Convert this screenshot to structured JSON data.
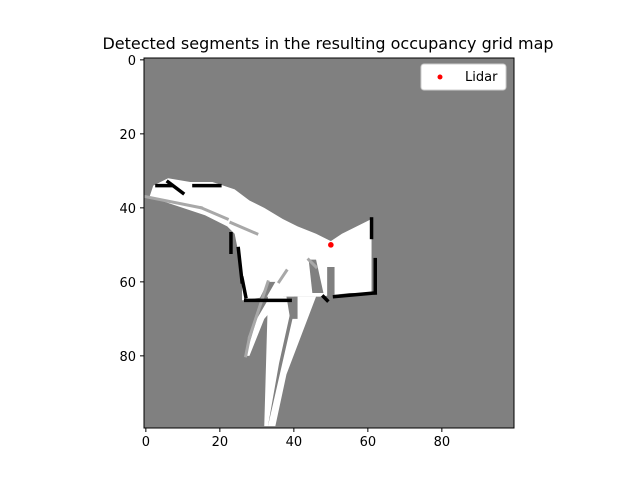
{
  "chart_data": {
    "type": "heatmap",
    "title": "Detected segments in the resulting occupancy grid map",
    "xlabel": "",
    "ylabel": "",
    "grid": false,
    "xlim": [
      -0.5,
      99.5
    ],
    "ylim": [
      99.5,
      -0.5
    ],
    "x_ticks": [
      0,
      20,
      40,
      60,
      80
    ],
    "y_ticks": [
      0,
      20,
      40,
      60,
      80
    ],
    "x_tick_labels": [
      "0",
      "20",
      "40",
      "60",
      "80"
    ],
    "y_tick_labels": [
      "0",
      "20",
      "40",
      "60",
      "80"
    ],
    "grid_size": [
      100,
      100
    ],
    "colormap": "gray",
    "colors": {
      "unknown": "#808080",
      "free": "#ffffff",
      "occupied": "#000000",
      "partial": "#a8a8a8",
      "lidar": "#ff0000"
    },
    "free_polygons": [
      [
        [
          1,
          37
        ],
        [
          2,
          34
        ],
        [
          6,
          32
        ],
        [
          12,
          33
        ],
        [
          18,
          33
        ],
        [
          24,
          35
        ],
        [
          28,
          38
        ],
        [
          32,
          40
        ],
        [
          37,
          43
        ],
        [
          41,
          45
        ],
        [
          46,
          47
        ],
        [
          50,
          49
        ],
        [
          53,
          47
        ],
        [
          57,
          45
        ],
        [
          61,
          43
        ],
        [
          61,
          49
        ],
        [
          61,
          63
        ],
        [
          55,
          63
        ],
        [
          47,
          64
        ],
        [
          45,
          64
        ],
        [
          39,
          64
        ],
        [
          33,
          64
        ],
        [
          26,
          65
        ],
        [
          26,
          60
        ],
        [
          25,
          52
        ],
        [
          24,
          47
        ],
        [
          22,
          45
        ],
        [
          16,
          42
        ],
        [
          10,
          40
        ],
        [
          4,
          38
        ]
      ],
      [
        [
          33,
          64
        ],
        [
          40,
          64
        ],
        [
          36,
          82
        ],
        [
          33,
          99
        ],
        [
          32,
          99
        ]
      ],
      [
        [
          41,
          64
        ],
        [
          46,
          64
        ],
        [
          38,
          85
        ],
        [
          35,
          99
        ],
        [
          33,
          99
        ]
      ],
      [
        [
          37,
          58
        ],
        [
          44,
          56
        ],
        [
          32,
          70
        ],
        [
          28,
          80
        ],
        [
          27,
          80
        ],
        [
          30,
          70
        ]
      ]
    ],
    "unknown_polygons": [
      [
        [
          38,
          64
        ],
        [
          41,
          64
        ],
        [
          41,
          70
        ],
        [
          39,
          70
        ]
      ],
      [
        [
          44,
          54
        ],
        [
          46,
          54
        ],
        [
          48,
          63
        ],
        [
          45,
          63
        ]
      ],
      [
        [
          33,
          60
        ],
        [
          35,
          60
        ],
        [
          31,
          67
        ],
        [
          30,
          66
        ]
      ],
      [
        [
          49,
          56
        ],
        [
          51,
          56
        ],
        [
          51,
          66
        ],
        [
          49,
          66
        ]
      ]
    ],
    "occupied_segments": [
      [
        [
          23,
          47
        ],
        [
          23,
          52
        ]
      ],
      [
        [
          25,
          51
        ],
        [
          26,
          60
        ]
      ],
      [
        [
          26,
          59
        ],
        [
          27,
          64
        ]
      ],
      [
        [
          27,
          65
        ],
        [
          39,
          65
        ]
      ],
      [
        [
          48,
          64
        ],
        [
          49,
          65
        ]
      ],
      [
        [
          51,
          64
        ],
        [
          62,
          63
        ]
      ],
      [
        [
          62,
          63
        ],
        [
          62,
          54
        ]
      ],
      [
        [
          61,
          48
        ],
        [
          61,
          43
        ]
      ],
      [
        [
          3,
          34
        ],
        [
          7,
          34
        ]
      ],
      [
        [
          13,
          34
        ],
        [
          20,
          34
        ]
      ],
      [
        [
          6,
          33
        ],
        [
          10,
          36
        ]
      ]
    ],
    "partial_segments": [
      [
        [
          0,
          37
        ],
        [
          15,
          40
        ]
      ],
      [
        [
          15,
          40
        ],
        [
          22,
          43
        ]
      ],
      [
        [
          23,
          44
        ],
        [
          30,
          47
        ]
      ],
      [
        [
          33,
          60
        ],
        [
          28,
          75
        ]
      ],
      [
        [
          28,
          75
        ],
        [
          27,
          80
        ]
      ],
      [
        [
          36,
          60
        ],
        [
          38,
          57
        ]
      ],
      [
        [
          44,
          54
        ],
        [
          46,
          56
        ]
      ]
    ],
    "lidar_point": {
      "x": 50,
      "y": 50
    },
    "series": [
      {
        "name": "Lidar",
        "type": "scatter",
        "x": [
          50
        ],
        "y": [
          50
        ],
        "color": "#ff0000"
      }
    ],
    "legend": {
      "position": "top-right",
      "entries": [
        "Lidar"
      ]
    }
  }
}
